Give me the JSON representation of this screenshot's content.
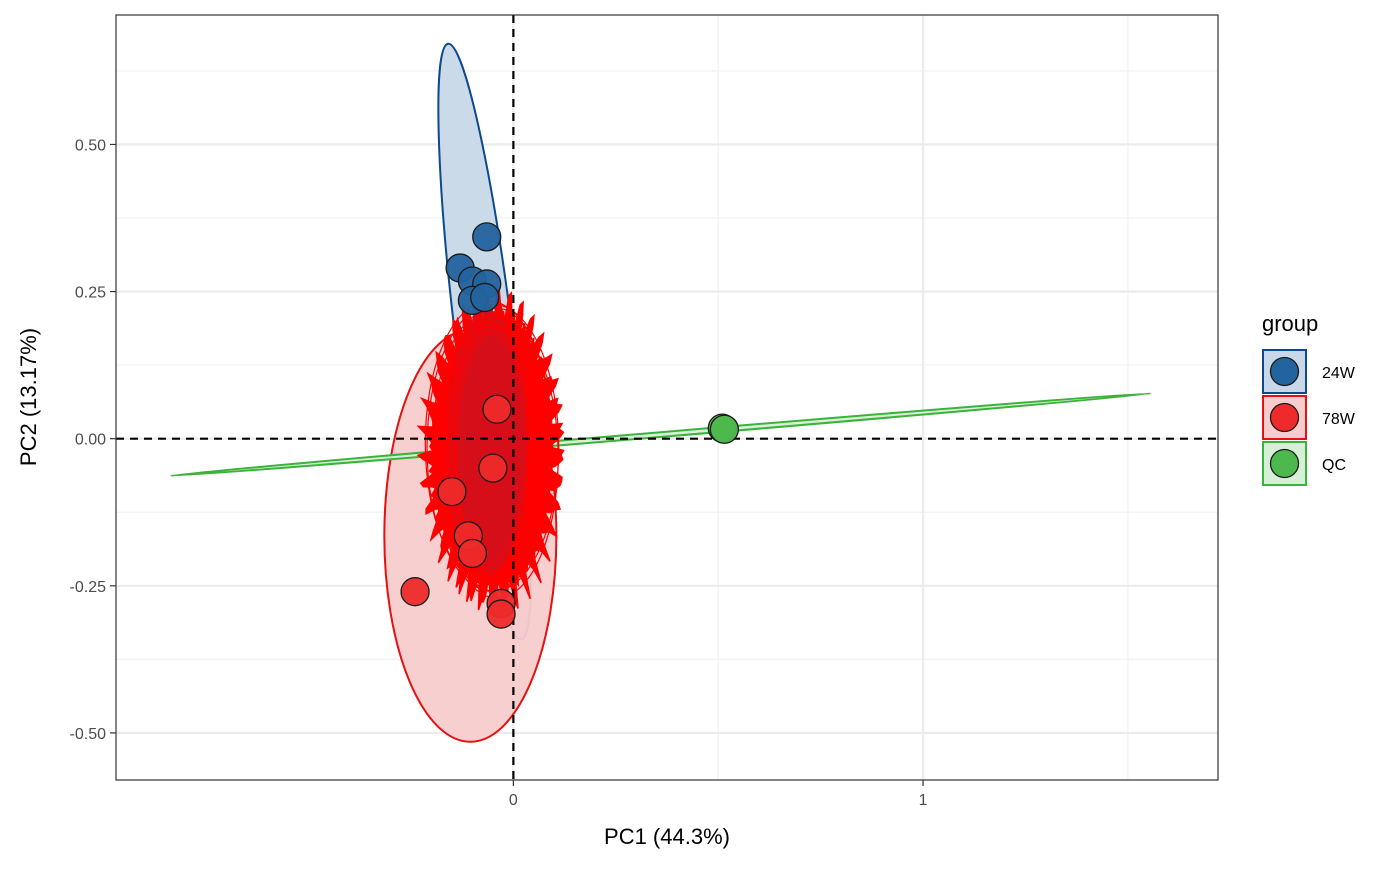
{
  "chart_data": {
    "type": "scatter",
    "title": "",
    "xlabel": "PC1 (44.3%)",
    "ylabel": "PC2 (13.17%)",
    "xlim": [
      -0.97,
      1.72
    ],
    "ylim": [
      -0.58,
      0.72
    ],
    "x_ticks": [
      {
        "value": 0,
        "label": "0"
      },
      {
        "value": 1,
        "label": "1"
      }
    ],
    "y_ticks": [
      {
        "value": 0.5,
        "label": "0.50"
      },
      {
        "value": 0.25,
        "label": "0.25"
      },
      {
        "value": 0.0,
        "label": "0.00"
      },
      {
        "value": -0.25,
        "label": "-0.25"
      },
      {
        "value": -0.5,
        "label": "-0.50"
      }
    ],
    "grid": true,
    "reference_lines": {
      "x": 0,
      "y": 0,
      "style": "dashed"
    },
    "legend": {
      "title": "group",
      "position": "right"
    },
    "series": [
      {
        "name": "24W",
        "color": "#23639e",
        "ellipse_fill": "#c8d8e8",
        "ellipse_stroke": "#0d4a8c",
        "points": [
          {
            "x": -0.065,
            "y": 0.343
          },
          {
            "x": -0.13,
            "y": 0.29
          },
          {
            "x": -0.1,
            "y": 0.268
          },
          {
            "x": -0.065,
            "y": 0.263
          },
          {
            "x": -0.1,
            "y": 0.235
          },
          {
            "x": -0.07,
            "y": 0.24
          }
        ],
        "ellipse": {
          "cx": -0.07,
          "cy": 0.165,
          "rx": 0.07,
          "ry": 0.51,
          "angle_deg": -7
        }
      },
      {
        "name": "78W",
        "color": "#ee2a2a",
        "ellipse_fill": "#f8cccc",
        "ellipse_stroke": "#e51010",
        "points": [
          {
            "x": -0.24,
            "y": -0.26
          },
          {
            "x": -0.15,
            "y": -0.09
          },
          {
            "x": -0.11,
            "y": -0.165
          },
          {
            "x": -0.1,
            "y": -0.195
          },
          {
            "x": -0.03,
            "y": -0.28
          },
          {
            "x": -0.03,
            "y": -0.298
          },
          {
            "x": -0.05,
            "y": -0.05
          },
          {
            "x": -0.04,
            "y": 0.05
          }
        ],
        "ellipse": {
          "cx": -0.105,
          "cy": -0.165,
          "rx": 0.21,
          "ry": 0.35,
          "angle_deg": 0
        }
      },
      {
        "name": "QC",
        "color": "#4db84d",
        "ellipse_fill": "#d6efd6",
        "ellipse_stroke": "#3bb33b",
        "points": [
          {
            "x": 0.51,
            "y": 0.018
          },
          {
            "x": 0.515,
            "y": 0.016
          }
        ],
        "ellipse": {
          "cx": 0.36,
          "cy": 0.007,
          "rx": 1.2,
          "ry": 0.004,
          "angle_deg": -4.8
        }
      }
    ],
    "dense_overlay": {
      "series": "78W",
      "color": "#ff0000",
      "fill": "#d0101c",
      "cx": -0.05,
      "cy": -0.02,
      "rx": 0.16,
      "ry": 0.25
    }
  }
}
